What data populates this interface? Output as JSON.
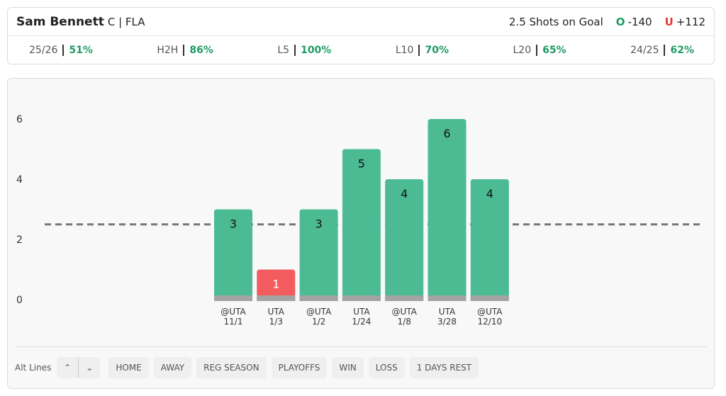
{
  "header": {
    "player": "Sam Bennett",
    "team": "C | FLA",
    "prop": "2.5 Shots on Goal",
    "over_label": "O",
    "over_odds": "-140",
    "under_label": "U",
    "under_odds": "+112"
  },
  "stats": [
    {
      "label": "25/26",
      "value": "51%"
    },
    {
      "label": "H2H",
      "value": "86%"
    },
    {
      "label": "L5",
      "value": "100%"
    },
    {
      "label": "L10",
      "value": "70%"
    },
    {
      "label": "L20",
      "value": "65%"
    },
    {
      "label": "24/25",
      "value": "62%"
    }
  ],
  "chart_data": {
    "type": "bar",
    "categories": [
      "@UTA",
      "UTA",
      "@UTA",
      "UTA",
      "@UTA",
      "UTA",
      "@UTA"
    ],
    "dates": [
      "11/1",
      "1/3",
      "1/2",
      "1/24",
      "1/8",
      "3/28",
      "12/10"
    ],
    "values": [
      3,
      1,
      3,
      5,
      4,
      6,
      4
    ],
    "line": 2.5,
    "color": "#4cbb94",
    "under_color": "#f25c5f",
    "ylim": [
      0,
      6
    ],
    "yticks": [
      0,
      2,
      4,
      6
    ]
  },
  "footer": {
    "alt_lines": "Alt Lines",
    "filters": [
      "HOME",
      "AWAY",
      "REG SEASON",
      "PLAYOFFS",
      "WIN",
      "LOSS",
      "1 DAYS REST"
    ]
  }
}
